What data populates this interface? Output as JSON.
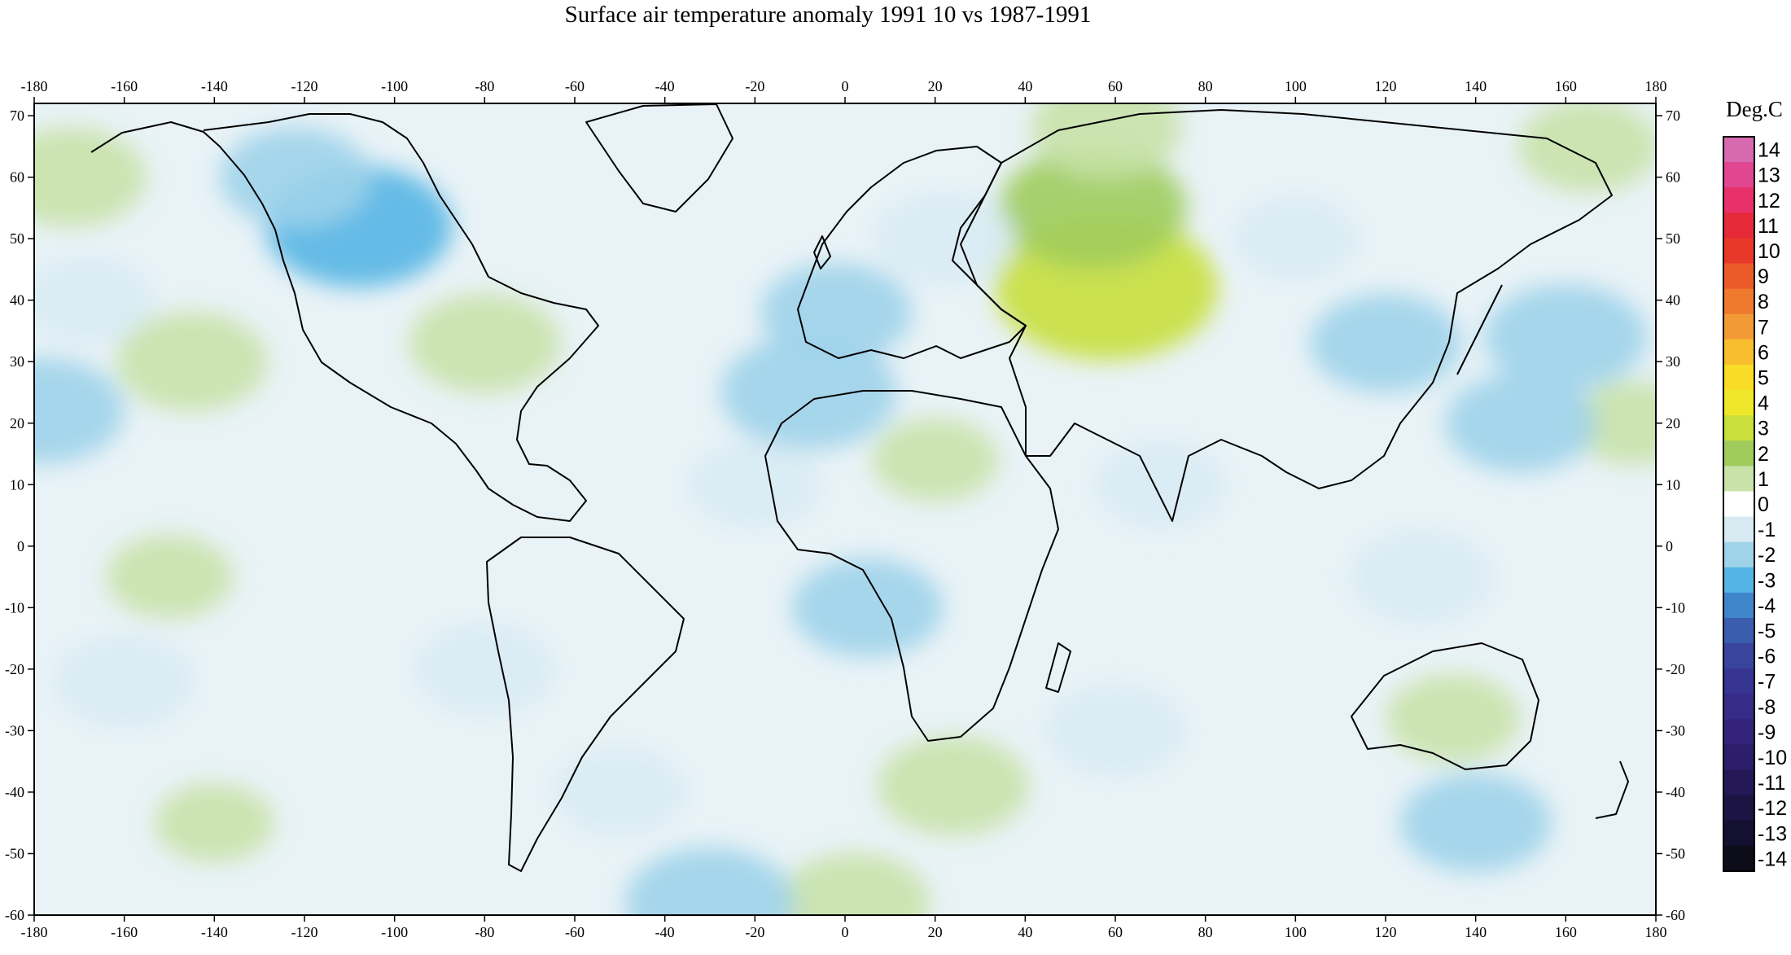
{
  "title": "Surface air temperature anomaly 1991 10 vs 1987-1991",
  "map": {
    "projection": "equirectangular",
    "lon_range": [
      -180,
      180
    ],
    "lat_range": [
      -60,
      72
    ],
    "lon_ticks": [
      -180,
      -160,
      -140,
      -120,
      -100,
      -80,
      -60,
      -40,
      -20,
      0,
      20,
      40,
      60,
      80,
      100,
      120,
      140,
      160,
      180
    ],
    "lat_ticks": [
      -60,
      -50,
      -40,
      -30,
      -20,
      -10,
      0,
      10,
      20,
      30,
      40,
      50,
      60,
      70
    ],
    "coastline_color": "#000000"
  },
  "colorbar": {
    "title": "Deg.C",
    "labels": [
      "14",
      "13",
      "12",
      "11",
      "10",
      "9",
      "8",
      "7",
      "6",
      "5",
      "4",
      "3",
      "2",
      "1",
      "0",
      "-1",
      "-2",
      "-3",
      "-4",
      "-5",
      "-6",
      "-7",
      "-8",
      "-9",
      "-10",
      "-11",
      "-12",
      "-13",
      "-14"
    ],
    "colors": [
      "#d669b0",
      "#e04691",
      "#e8306b",
      "#e62a3a",
      "#e8382a",
      "#ec5a2a",
      "#ef7a2e",
      "#f29b36",
      "#f7be2e",
      "#f8dc25",
      "#efe82a",
      "#c8df3c",
      "#9fcc5c",
      "#c8e2a8",
      "#ffffff",
      "#d8ebf3",
      "#9fd3ea",
      "#54b5e4",
      "#3f86c9",
      "#3a5dae",
      "#39449b",
      "#373592",
      "#362b86",
      "#33247a",
      "#2d1e6a",
      "#241856",
      "#1c1442",
      "#141030",
      "#0d0d1a"
    ]
  },
  "chart_data": {
    "type": "heatmap",
    "title": "Surface air temperature anomaly 1991 10 vs 1987-1991",
    "units": "Deg.C",
    "value_range": [
      -14,
      14
    ],
    "x_axis": {
      "label": "",
      "range": [
        -180,
        180
      ]
    },
    "y_axis": {
      "label": "",
      "range": [
        -60,
        72
      ]
    },
    "anomaly_regions": [
      {
        "lon": 58,
        "lat": 42,
        "value": 3.5
      },
      {
        "lon": 55,
        "lat": 55,
        "value": 2.5
      },
      {
        "lon": 58,
        "lat": 68,
        "value": 1.5
      },
      {
        "lon": -145,
        "lat": 30,
        "value": 1.5
      },
      {
        "lon": -80,
        "lat": 33,
        "value": 1.5
      },
      {
        "lon": -172,
        "lat": 60,
        "value": 1.5
      },
      {
        "lon": 165,
        "lat": 65,
        "value": 1.2
      },
      {
        "lon": 135,
        "lat": -28,
        "value": 1.0
      },
      {
        "lon": 24,
        "lat": -39,
        "value": 1.5
      },
      {
        "lon": 2,
        "lat": -58,
        "value": 1.5
      },
      {
        "lon": 20,
        "lat": 14,
        "value": 0.8
      },
      {
        "lon": -150,
        "lat": -5,
        "value": 0.8
      },
      {
        "lon": 175,
        "lat": 20,
        "value": 0.8
      },
      {
        "lon": -140,
        "lat": -45,
        "value": 0.6
      },
      {
        "lon": -108,
        "lat": 52,
        "value": -2.5
      },
      {
        "lon": -122,
        "lat": 60,
        "value": -1.5
      },
      {
        "lon": -168,
        "lat": 40,
        "value": -1.0
      },
      {
        "lon": -178,
        "lat": 22,
        "value": -1.8
      },
      {
        "lon": -8,
        "lat": 25,
        "value": -2.2
      },
      {
        "lon": -2,
        "lat": 38,
        "value": -1.5
      },
      {
        "lon": 22,
        "lat": 50,
        "value": -1.2
      },
      {
        "lon": 120,
        "lat": 33,
        "value": -1.5
      },
      {
        "lon": 150,
        "lat": 20,
        "value": -1.5
      },
      {
        "lon": 160,
        "lat": 34,
        "value": -1.8
      },
      {
        "lon": 128,
        "lat": -5,
        "value": -1.3
      },
      {
        "lon": 5,
        "lat": -10,
        "value": -1.5
      },
      {
        "lon": -20,
        "lat": 10,
        "value": -1.0
      },
      {
        "lon": -30,
        "lat": -58,
        "value": -2.0
      },
      {
        "lon": 60,
        "lat": -30,
        "value": -1.2
      },
      {
        "lon": 70,
        "lat": 10,
        "value": -1.0
      },
      {
        "lon": -80,
        "lat": -20,
        "value": -1.2
      },
      {
        "lon": 140,
        "lat": -45,
        "value": -1.5
      },
      {
        "lon": -160,
        "lat": -22,
        "value": -1.2
      },
      {
        "lon": 100,
        "lat": 50,
        "value": -0.8
      },
      {
        "lon": -50,
        "lat": -40,
        "value": -1.0
      }
    ],
    "grid": false
  }
}
